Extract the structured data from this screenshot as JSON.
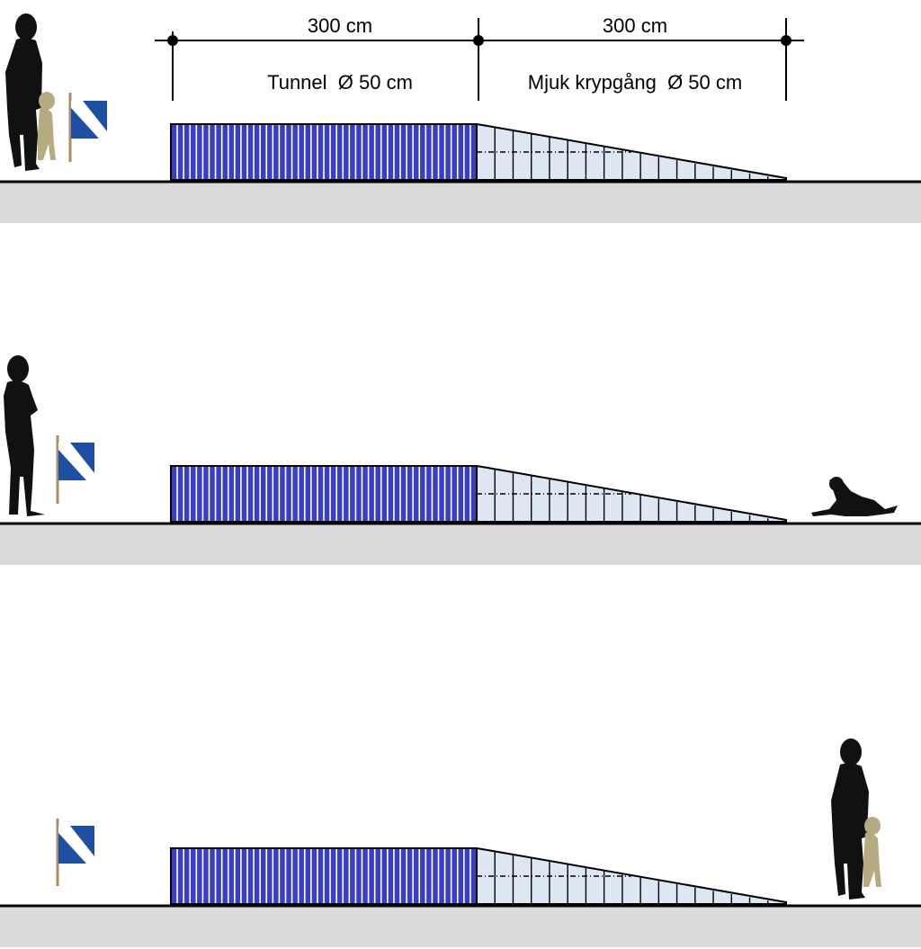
{
  "dimensions": {
    "tunnel_length": "300 cm",
    "soft_tunnel_length": "300 cm",
    "tunnel_label": "Tunnel  Ø 50 cm",
    "soft_tunnel_label": "Mjuk krypgång  Ø 50 cm"
  },
  "colors": {
    "tunnel_fill": "#3b3fbf",
    "tunnel_stripe": "#ffffff",
    "soft_tunnel_fill": "#dde6f3",
    "ground": "#d9d9d9",
    "flag_blue": "#1f4fa3",
    "silhouette": "#111111",
    "dog_standing": "#b6ab80"
  },
  "panels": [
    {
      "id": "panel-start",
      "handler_position": "left",
      "dog_position": "left, beside handler",
      "flag_position": "left"
    },
    {
      "id": "panel-send",
      "handler_position": "left",
      "dog_position": "right, lying down past tunnel exit",
      "flag_position": "left"
    },
    {
      "id": "panel-return",
      "handler_position": "right",
      "dog_position": "right, beside handler",
      "flag_position": "left"
    }
  ]
}
